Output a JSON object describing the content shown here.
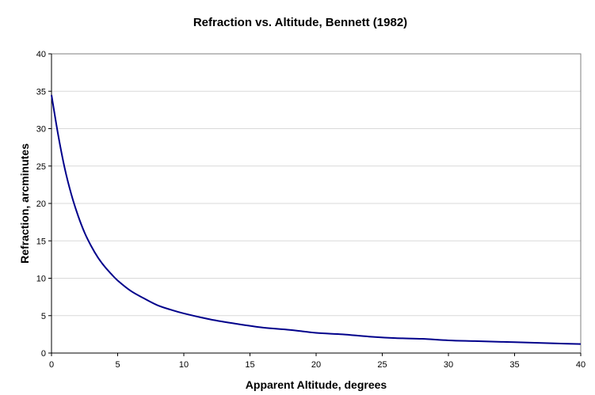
{
  "chart_data": {
    "type": "line",
    "title": "Refraction vs. Altitude, Bennett (1982)",
    "xlabel": "Apparent Altitude, degrees",
    "ylabel": "Refraction, arcminutes",
    "xlim": [
      0,
      40
    ],
    "ylim": [
      0,
      40
    ],
    "x_ticks": [
      0,
      5,
      10,
      15,
      20,
      25,
      30,
      35,
      40
    ],
    "y_ticks": [
      0,
      5,
      10,
      15,
      20,
      25,
      30,
      35,
      40
    ],
    "grid": "horizontal",
    "legend": "none",
    "series": [
      {
        "color": "#00008b",
        "x": [
          0,
          0.5,
          1,
          1.5,
          2,
          2.5,
          3,
          3.5,
          4,
          4.5,
          5,
          6,
          7,
          8,
          9,
          10,
          12,
          14,
          16,
          18,
          20,
          22,
          24,
          26,
          28,
          30,
          32,
          34,
          36,
          38,
          40
        ],
        "y": [
          34.5,
          29.2,
          24.7,
          21.2,
          18.4,
          16.1,
          14.3,
          12.8,
          11.6,
          10.6,
          9.7,
          8.3,
          7.3,
          6.4,
          5.8,
          5.3,
          4.5,
          3.9,
          3.4,
          3.1,
          2.7,
          2.5,
          2.2,
          2.0,
          1.9,
          1.7,
          1.6,
          1.5,
          1.4,
          1.3,
          1.2
        ]
      }
    ]
  }
}
